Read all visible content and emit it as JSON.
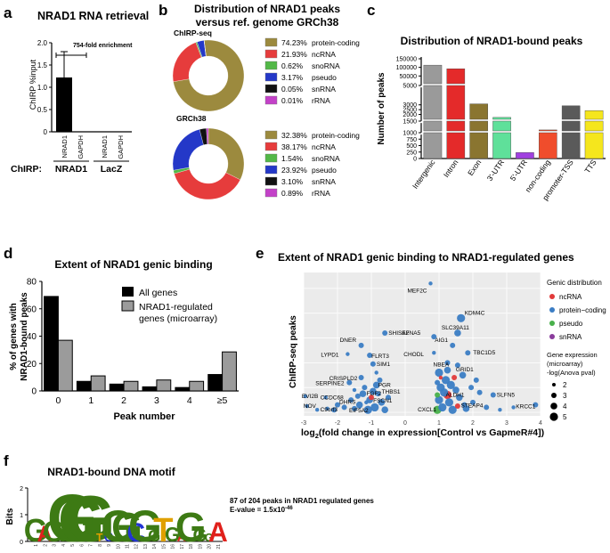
{
  "panels": {
    "a": {
      "letter": "a",
      "title": "NRAD1 RNA retrieval",
      "ylabel": "ChIRP %input",
      "annotation": "754-fold enrichment",
      "chirp_label": "ChIRP:",
      "groups": [
        "NRAD1",
        "LacZ"
      ]
    },
    "b": {
      "letter": "b",
      "title_lines": [
        "Distribution of NRAD1 peaks",
        "versus ref. genome GRCh38"
      ],
      "donut1_title": "ChIRP-seq",
      "donut2_title": "GRCh38"
    },
    "c": {
      "letter": "c",
      "title": "Distribution of NRAD1-bound peaks",
      "ylabel": "Number of peaks"
    },
    "d": {
      "letter": "d",
      "title": "Extent of NRAD1 genic binding",
      "ylabel_lines": [
        "% of genes with",
        "NRAD1-bound peaks"
      ],
      "xlabel": "Peak number",
      "legend": [
        "All genes",
        "NRAD1-regulated",
        "genes (microarray)"
      ]
    },
    "e": {
      "letter": "e",
      "title": "Extent of NRAD1 genic binding to NRAD1-regulated genes",
      "ylabel": "ChIRP-seq peaks",
      "xlabel_pre": "log",
      "xlabel_sub": "2",
      "xlabel_post": "(fold change in expression[Control vs GapmeR#4])",
      "legend_title": "Genic distribution",
      "legend_types": [
        {
          "name": "ncRNA",
          "color": "#e23a3a"
        },
        {
          "name": "protein−coding",
          "color": "#3b7dc4"
        },
        {
          "name": "pseudo",
          "color": "#48b04a"
        },
        {
          "name": "snRNA",
          "color": "#8a3c9c"
        }
      ],
      "size_title_lines": [
        "Gene expression",
        "(microarray)",
        "-log(Anova pval)"
      ],
      "size_levels": [
        "2",
        "3",
        "4",
        "5"
      ]
    },
    "f": {
      "letter": "f",
      "title": "NRAD1-bound DNA motif",
      "note_line1": "87 of 204 peaks in NRAD1 regulated genes",
      "note_line2": "E-value = 1.5x10",
      "note_exp": "-46",
      "ylabel": "Bits"
    }
  },
  "chart_data": [
    {
      "id": "a",
      "type": "bar",
      "categories": [
        "NRAD1",
        "GAPDH",
        "NRAD1",
        "GAPDH"
      ],
      "groups": [
        "NRAD1",
        "NRAD1",
        "LacZ",
        "LacZ"
      ],
      "values": [
        1.22,
        0.0,
        0.0,
        0.0
      ],
      "errors": [
        0.58,
        0,
        0,
        0
      ],
      "ylabel": "ChIRP %input",
      "ylim": [
        0,
        2.0
      ],
      "yticks": [
        "0",
        "0.5",
        "1.0",
        "1.5",
        "2.0"
      ],
      "bar_color": "#000000"
    },
    {
      "id": "b1",
      "type": "pie",
      "style": "donut",
      "title": "ChIRP-seq",
      "labels": [
        "protein-coding",
        "ncRNA",
        "snoRNA",
        "pseudo",
        "snRNA",
        "rRNA"
      ],
      "values": [
        74.23,
        21.93,
        0.62,
        3.17,
        0.05,
        0.01
      ],
      "value_labels": [
        "74.23%",
        "21.93%",
        "0.62%",
        "3.17%",
        "0.05%",
        "0.01%"
      ],
      "colors": [
        "#9c8a3e",
        "#e63c3c",
        "#52b847",
        "#2438c8",
        "#111111",
        "#c341c8"
      ]
    },
    {
      "id": "b2",
      "type": "pie",
      "style": "donut",
      "title": "GRCh38",
      "labels": [
        "protein-coding",
        "ncRNA",
        "snoRNA",
        "pseudo",
        "snRNA",
        "rRNA"
      ],
      "values": [
        32.38,
        38.17,
        1.54,
        23.92,
        3.1,
        0.89
      ],
      "value_labels": [
        "32.38%",
        "38.17%",
        "1.54%",
        "23.92%",
        "3.10%",
        "0.89%"
      ],
      "colors": [
        "#9c8a3e",
        "#e63c3c",
        "#52b847",
        "#2438c8",
        "#111111",
        "#c341c8"
      ]
    },
    {
      "id": "c",
      "type": "bar",
      "title": "Distribution of NRAD1-bound peaks",
      "ylabel": "Number of peaks",
      "categories": [
        "Intergenic",
        "Intron",
        "Exon",
        "3'-UTR",
        "5'-UTR",
        "non-coding",
        "promoter-TSS",
        "TTS"
      ],
      "values": [
        113000,
        92000,
        3100,
        1700,
        230,
        1050,
        2900,
        2400
      ],
      "colors": [
        "#9a9a9a",
        "#e42a2a",
        "#8a7530",
        "#5fe09a",
        "#a040e0",
        "#f04d2c",
        "#5a5a5a",
        "#f5e61d"
      ],
      "segments": [
        [
          0,
          1000
        ],
        [
          1000,
          1500
        ],
        [
          1500,
          5000
        ],
        [
          5000,
          150000
        ]
      ],
      "yticks": [
        {
          "label": "0",
          "v": 0
        },
        {
          "label": "250",
          "v": 250
        },
        {
          "label": "500",
          "v": 500
        },
        {
          "label": "750",
          "v": 750
        },
        {
          "label": "1000",
          "v": 1000
        },
        {
          "label": "1500",
          "v": 1500
        },
        {
          "label": "2000",
          "v": 2000
        },
        {
          "label": "2500",
          "v": 2500
        },
        {
          "label": "3000",
          "v": 3000
        },
        {
          "label": "5000",
          "v": 5000
        },
        {
          "label": "50000",
          "v": 50000
        },
        {
          "label": "100000",
          "v": 100000
        },
        {
          "label": "150000",
          "v": 150000
        }
      ]
    },
    {
      "id": "d",
      "type": "bar",
      "title": "Extent of NRAD1 genic binding",
      "categories": [
        "0",
        "1",
        "2",
        "3",
        "4",
        "≥5"
      ],
      "series": [
        {
          "name": "All genes",
          "color": "#000000",
          "values": [
            69,
            7,
            5,
            3,
            2.5,
            12
          ]
        },
        {
          "name": "NRAD1-regulated genes (microarray)",
          "color": "#9b9b9b",
          "values": [
            37,
            11,
            7,
            8,
            7,
            28.5
          ]
        }
      ],
      "xlabel": "Peak number",
      "ylabel": "% of genes with NRAD1-bound peaks",
      "ylim": [
        0,
        80
      ],
      "yticks": [
        "0",
        "20",
        "40",
        "60",
        "80"
      ]
    },
    {
      "id": "e",
      "type": "scatter",
      "xlim": [
        -3,
        4
      ],
      "ylim": [
        0,
        55
      ],
      "xticks": [
        "-3",
        "-2",
        "-1",
        "0",
        "1",
        "2",
        "3",
        "4"
      ],
      "labels_shown": [
        "MEF2C",
        "KDM4C",
        "SLC39A11",
        "EFNA5",
        "AIG1",
        "TBC1D5",
        "CHODL",
        "NBEA",
        "GRID1",
        "SHISA2",
        "DNER",
        "LYPD1",
        "FLRT3",
        "SIM1",
        "CRISPLD2",
        "SERPINE2",
        "PGR",
        "FGF2",
        "THBS1",
        "FSCN1",
        "EIF5A2",
        "CCDC68",
        "EVI2B",
        "NOV",
        "C9orf3",
        "DHRS",
        "SLFN5",
        "KRCC1",
        "ALDH1",
        "STEAP4",
        "CXCL1"
      ],
      "points": [
        {
          "label": "MEF2C",
          "x": 0.75,
          "y": 52,
          "cls": 1,
          "s": 2
        },
        {
          "label": "KDM4C",
          "x": 1.65,
          "y": 38,
          "cls": 1,
          "s": 5
        },
        {
          "label": "SLC39A11",
          "x": 1.55,
          "y": 32,
          "cls": 1,
          "s": 4
        },
        {
          "label": "EFNA5",
          "x": 0.85,
          "y": 30.5,
          "cls": 1,
          "s": 3
        },
        {
          "label": "AIG1",
          "x": 1.4,
          "y": 27,
          "cls": 1,
          "s": 3
        },
        {
          "label": "TBC1D5",
          "x": 1.85,
          "y": 24,
          "cls": 1,
          "s": 3
        },
        {
          "label": "CHODL",
          "x": 0.85,
          "y": 24,
          "cls": 1,
          "s": 2
        },
        {
          "label": "NBEA",
          "x": 1.25,
          "y": 20,
          "cls": 1,
          "s": 3
        },
        {
          "label": "GRID1",
          "x": 1.55,
          "y": 19,
          "cls": 1,
          "s": 3
        },
        {
          "label": "SHISA2",
          "x": -0.6,
          "y": 32,
          "cls": 1,
          "s": 3
        },
        {
          "label": "DNER",
          "x": -1.3,
          "y": 27,
          "cls": 1,
          "s": 3
        },
        {
          "label": "LYPD1",
          "x": -1.7,
          "y": 23.5,
          "cls": 1,
          "s": 2
        },
        {
          "label": "FLRT3",
          "x": -1.05,
          "y": 23,
          "cls": 1,
          "s": 3
        },
        {
          "label": "SIM1",
          "x": -0.95,
          "y": 19.5,
          "cls": 1,
          "s": 3
        },
        {
          "label": "CRISPLD2",
          "x": -1.3,
          "y": 14,
          "cls": 1,
          "s": 3
        },
        {
          "label": "SERPINE2",
          "x": -1.65,
          "y": 12,
          "cls": 1,
          "s": 3
        },
        {
          "label": "PGR",
          "x": -0.85,
          "y": 11,
          "cls": 1,
          "s": 4
        },
        {
          "label": "FGF2",
          "x": -1.25,
          "y": 7.5,
          "cls": 1,
          "s": 4
        },
        {
          "label": "THBS1",
          "x": -0.8,
          "y": 7.5,
          "cls": 1,
          "s": 3
        },
        {
          "label": "FSCN1",
          "x": -1.05,
          "y": 5,
          "cls": 1,
          "s": 4
        },
        {
          "label": "EIF5A2",
          "x": -1.5,
          "y": 1.5,
          "cls": 1,
          "s": 3
        },
        {
          "label": "CCDC68",
          "x": -2.35,
          "y": 6,
          "cls": 1,
          "s": 2
        },
        {
          "label": "EVI2B",
          "x": -2.95,
          "y": 6.5,
          "cls": 1,
          "s": 2
        },
        {
          "label": "NOV",
          "x": -2.9,
          "y": 2.5,
          "cls": 1,
          "s": 2
        },
        {
          "label": "C9orf3",
          "x": -2.3,
          "y": 1.5,
          "cls": 4,
          "s": 2
        },
        {
          "label": "DHRS",
          "x": -2.0,
          "y": 3,
          "cls": 4,
          "s": 3
        },
        {
          "label": "SLFN5",
          "x": 2.6,
          "y": 7,
          "cls": 1,
          "s": 3
        },
        {
          "label": "KRCC1",
          "x": 3.85,
          "y": 3,
          "cls": 1,
          "s": 3
        },
        {
          "label": "ALDH1",
          "x": 1.25,
          "y": 7,
          "cls": 0,
          "s": 5
        },
        {
          "label": "STEAP4",
          "x": 1.75,
          "y": 3,
          "cls": 1,
          "s": 3
        },
        {
          "label": "CXCL1",
          "x": 0.95,
          "y": 1,
          "cls": 2,
          "s": 5
        },
        {
          "x": 1.0,
          "y": 16,
          "cls": 1,
          "s": 5
        },
        {
          "x": 1.2,
          "y": 13,
          "cls": 1,
          "s": 5
        },
        {
          "x": 1.05,
          "y": 10,
          "cls": 1,
          "s": 5
        },
        {
          "x": 1.35,
          "y": 11,
          "cls": 1,
          "s": 5
        },
        {
          "x": 1.15,
          "y": 8,
          "cls": 1,
          "s": 5
        },
        {
          "x": 1.5,
          "y": 9,
          "cls": 1,
          "s": 4
        },
        {
          "x": 1.0,
          "y": 5,
          "cls": 1,
          "s": 5
        },
        {
          "x": 1.3,
          "y": 4,
          "cls": 1,
          "s": 5
        },
        {
          "x": 1.6,
          "y": 6,
          "cls": 1,
          "s": 4
        },
        {
          "x": 1.1,
          "y": 2,
          "cls": 1,
          "s": 5
        },
        {
          "x": 1.4,
          "y": 1,
          "cls": 1,
          "s": 5
        },
        {
          "x": 1.8,
          "y": 1.5,
          "cls": 1,
          "s": 4
        },
        {
          "x": 2.0,
          "y": 4,
          "cls": 1,
          "s": 3
        },
        {
          "x": 2.2,
          "y": 8,
          "cls": 1,
          "s": 3
        },
        {
          "x": 2.1,
          "y": 13,
          "cls": 1,
          "s": 3
        },
        {
          "x": 1.7,
          "y": 15,
          "cls": 1,
          "s": 4
        },
        {
          "x": 1.25,
          "y": 17,
          "cls": 1,
          "s": 4
        },
        {
          "x": 0.95,
          "y": 12,
          "cls": 1,
          "s": 3
        },
        {
          "x": 1.45,
          "y": 14,
          "cls": 0,
          "s": 3
        },
        {
          "x": 1.05,
          "y": 14,
          "cls": 0,
          "s": 2
        },
        {
          "x": 1.55,
          "y": 2.5,
          "cls": 0,
          "s": 3
        },
        {
          "x": 0.95,
          "y": 7,
          "cls": 2,
          "s": 3
        },
        {
          "x": 2.4,
          "y": 2,
          "cls": 1,
          "s": 3
        },
        {
          "x": 2.8,
          "y": 1,
          "cls": 1,
          "s": 2
        },
        {
          "x": 3.2,
          "y": 2,
          "cls": 1,
          "s": 2
        },
        {
          "x": 1.95,
          "y": 10,
          "cls": 1,
          "s": 3
        },
        {
          "x": -0.9,
          "y": 2,
          "cls": 1,
          "s": 5
        },
        {
          "x": -1.1,
          "y": 1,
          "cls": 1,
          "s": 5
        },
        {
          "x": -0.7,
          "y": 4,
          "cls": 1,
          "s": 4
        },
        {
          "x": -0.95,
          "y": 8.5,
          "cls": 1,
          "s": 4
        },
        {
          "x": -1.35,
          "y": 3,
          "cls": 1,
          "s": 4
        },
        {
          "x": -0.6,
          "y": 1,
          "cls": 1,
          "s": 4
        },
        {
          "x": -1.2,
          "y": 10,
          "cls": 1,
          "s": 3
        },
        {
          "x": -0.75,
          "y": 13,
          "cls": 1,
          "s": 3
        },
        {
          "x": -1.6,
          "y": 5,
          "cls": 1,
          "s": 3
        },
        {
          "x": -1.8,
          "y": 2,
          "cls": 1,
          "s": 3
        },
        {
          "x": -2.1,
          "y": 1,
          "cls": 1,
          "s": 3
        },
        {
          "x": -2.6,
          "y": 1,
          "cls": 1,
          "s": 2
        },
        {
          "x": -0.5,
          "y": 6,
          "cls": 1,
          "s": 3
        },
        {
          "x": -1.4,
          "y": 6.5,
          "cls": 1,
          "s": 3
        },
        {
          "x": -1.0,
          "y": 6,
          "cls": 0,
          "s": 3
        },
        {
          "x": -1.15,
          "y": 4,
          "cls": 4,
          "s": 2
        },
        {
          "x": -0.85,
          "y": 16,
          "cls": 1,
          "s": 2
        },
        {
          "x": -1.5,
          "y": 9,
          "cls": 1,
          "s": 2
        }
      ]
    },
    {
      "id": "f",
      "type": "sequence-logo",
      "ylabel": "Bits",
      "ylim": [
        0,
        2
      ],
      "yticks": [
        "0",
        "1",
        "2"
      ],
      "positions": [
        "1",
        "2",
        "3",
        "4",
        "5",
        "6",
        "7",
        "8",
        "9",
        "10",
        "11",
        "12",
        "13",
        "14",
        "15",
        "16",
        "17",
        "18",
        "19",
        "20",
        "21"
      ],
      "letters": [
        "G",
        "A",
        "G",
        "G",
        "G",
        "G",
        "G",
        "T",
        "C",
        "G",
        "G",
        "C",
        "G",
        "G",
        "T",
        "G",
        "A",
        "G",
        "G",
        "G",
        "A"
      ],
      "heights": [
        0.85,
        0.6,
        0.8,
        0.3,
        1.8,
        1.65,
        1.75,
        0.3,
        0.35,
        1.2,
        1.1,
        0.7,
        1.2,
        0.45,
        0.9,
        0.55,
        0.35,
        1.1,
        0.5,
        0.3,
        0.75
      ],
      "colors": {
        "A": "#e0201b",
        "C": "#2234d4",
        "G": "#3d7a14",
        "T": "#e0a000"
      }
    }
  ]
}
